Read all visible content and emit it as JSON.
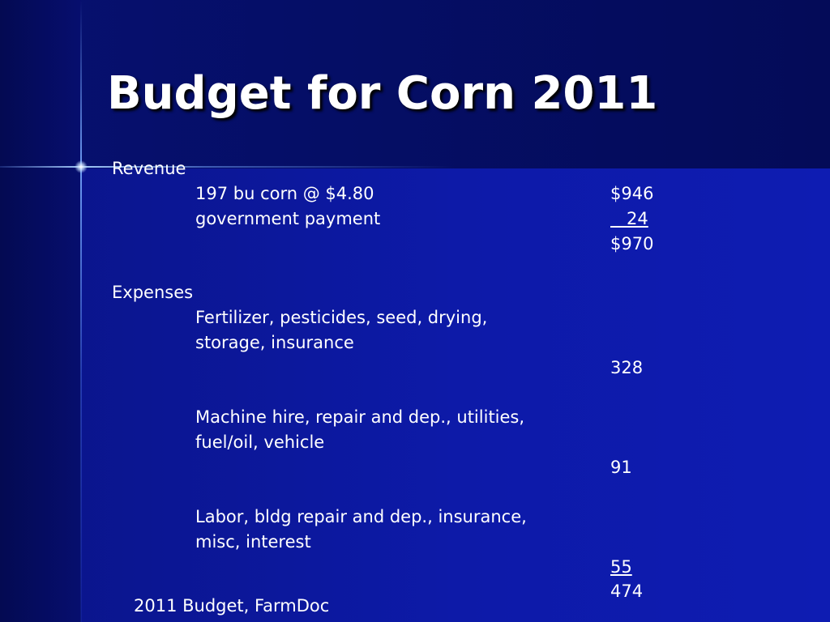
{
  "slide": {
    "title": "Budget for Corn 2011",
    "footer": "2011 Budget, FarmDoc"
  },
  "revenue": {
    "heading": "Revenue",
    "items": [
      {
        "label": "197 bu corn @ $4.80",
        "amount": "$946"
      },
      {
        "label": "government payment",
        "amount": "   24"
      }
    ],
    "total": "$970"
  },
  "expenses": {
    "heading": "Expenses",
    "groups": [
      {
        "lines": [
          "Fertilizer, pesticides, seed, drying,",
          "storage, insurance"
        ],
        "amount": "328"
      },
      {
        "lines": [
          "Machine hire, repair and dep., utilities,",
          "fuel/oil, vehicle"
        ],
        "amount": "91"
      },
      {
        "lines": [
          "Labor, bldg repair and dep., insurance,",
          "misc, interest"
        ],
        "amount": "55"
      }
    ],
    "total": "474"
  },
  "colors": {
    "background": "#0c1596",
    "title_band": "#050e66",
    "text": "#ffffff"
  }
}
